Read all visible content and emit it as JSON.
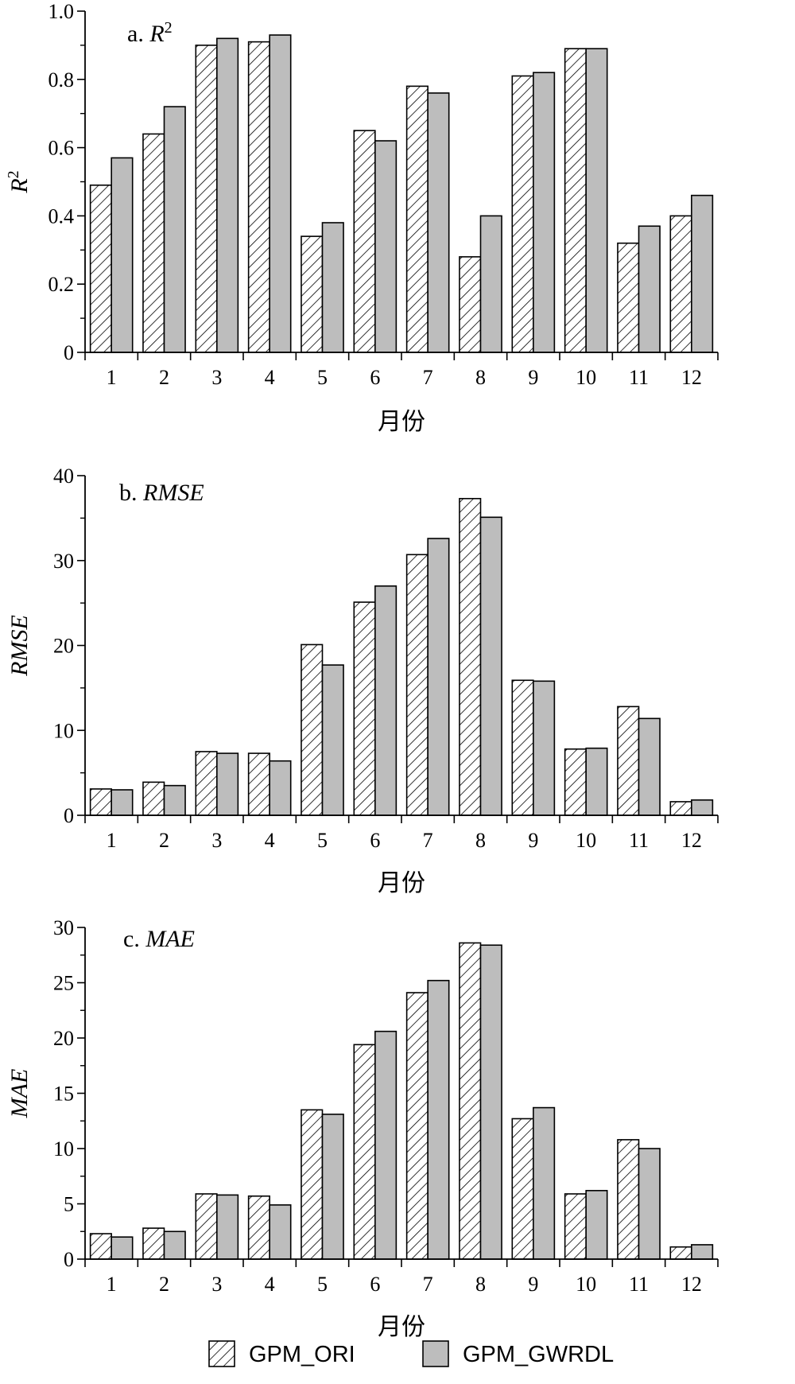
{
  "chart_data": [
    {
      "type": "bar",
      "title_prefix": "a. ",
      "title_main": "R",
      "title_sup": "2",
      "xlabel": "月份",
      "ylabel_main": "R",
      "ylabel_sup": "2",
      "categories": [
        "1",
        "2",
        "3",
        "4",
        "5",
        "6",
        "7",
        "8",
        "9",
        "10",
        "11",
        "12"
      ],
      "ylim": [
        0,
        1.0
      ],
      "yticks": [
        "0",
        "0.2",
        "0.4",
        "0.6",
        "0.8",
        "1.0"
      ],
      "series": [
        {
          "name": "GPM_ORI",
          "values": [
            0.49,
            0.64,
            0.9,
            0.91,
            0.34,
            0.65,
            0.78,
            0.28,
            0.81,
            0.89,
            0.32,
            0.4
          ]
        },
        {
          "name": "GPM_GWRDL",
          "values": [
            0.57,
            0.72,
            0.92,
            0.93,
            0.38,
            0.62,
            0.76,
            0.4,
            0.82,
            0.89,
            0.37,
            0.46
          ]
        }
      ]
    },
    {
      "type": "bar",
      "title_prefix": "b. ",
      "title_main": "RMSE",
      "title_sup": "",
      "xlabel": "月份",
      "ylabel_main": "RMSE",
      "ylabel_sup": "",
      "categories": [
        "1",
        "2",
        "3",
        "4",
        "5",
        "6",
        "7",
        "8",
        "9",
        "10",
        "11",
        "12"
      ],
      "ylim": [
        0,
        40
      ],
      "yticks": [
        "0",
        "10",
        "20",
        "30",
        "40"
      ],
      "series": [
        {
          "name": "GPM_ORI",
          "values": [
            3.1,
            3.9,
            7.5,
            7.3,
            20.1,
            25.1,
            30.7,
            37.3,
            15.9,
            7.8,
            12.8,
            1.6
          ]
        },
        {
          "name": "GPM_GWRDL",
          "values": [
            3.0,
            3.5,
            7.3,
            6.4,
            17.7,
            27.0,
            32.6,
            35.1,
            15.8,
            7.9,
            11.4,
            1.8
          ]
        }
      ]
    },
    {
      "type": "bar",
      "title_prefix": "c. ",
      "title_main": "MAE",
      "title_sup": "",
      "xlabel": "月份",
      "ylabel_main": "MAE",
      "ylabel_sup": "",
      "categories": [
        "1",
        "2",
        "3",
        "4",
        "5",
        "6",
        "7",
        "8",
        "9",
        "10",
        "11",
        "12"
      ],
      "ylim": [
        0,
        30
      ],
      "yticks": [
        "0",
        "5",
        "10",
        "15",
        "20",
        "25",
        "30"
      ],
      "series": [
        {
          "name": "GPM_ORI",
          "values": [
            2.3,
            2.8,
            5.9,
            5.7,
            13.5,
            19.4,
            24.1,
            28.6,
            12.7,
            5.9,
            10.8,
            1.1
          ]
        },
        {
          "name": "GPM_GWRDL",
          "values": [
            2.0,
            2.5,
            5.8,
            4.9,
            13.1,
            20.6,
            25.2,
            28.4,
            13.7,
            6.2,
            10.0,
            1.3
          ]
        }
      ]
    }
  ],
  "legend": {
    "items": [
      {
        "label": "GPM_ORI",
        "style": "hatched"
      },
      {
        "label": "GPM_GWRDL",
        "style": "gray"
      }
    ]
  },
  "colors": {
    "gray_fill": "#bdbdbd",
    "hatch_line": "#000000",
    "outline": "#000000"
  }
}
